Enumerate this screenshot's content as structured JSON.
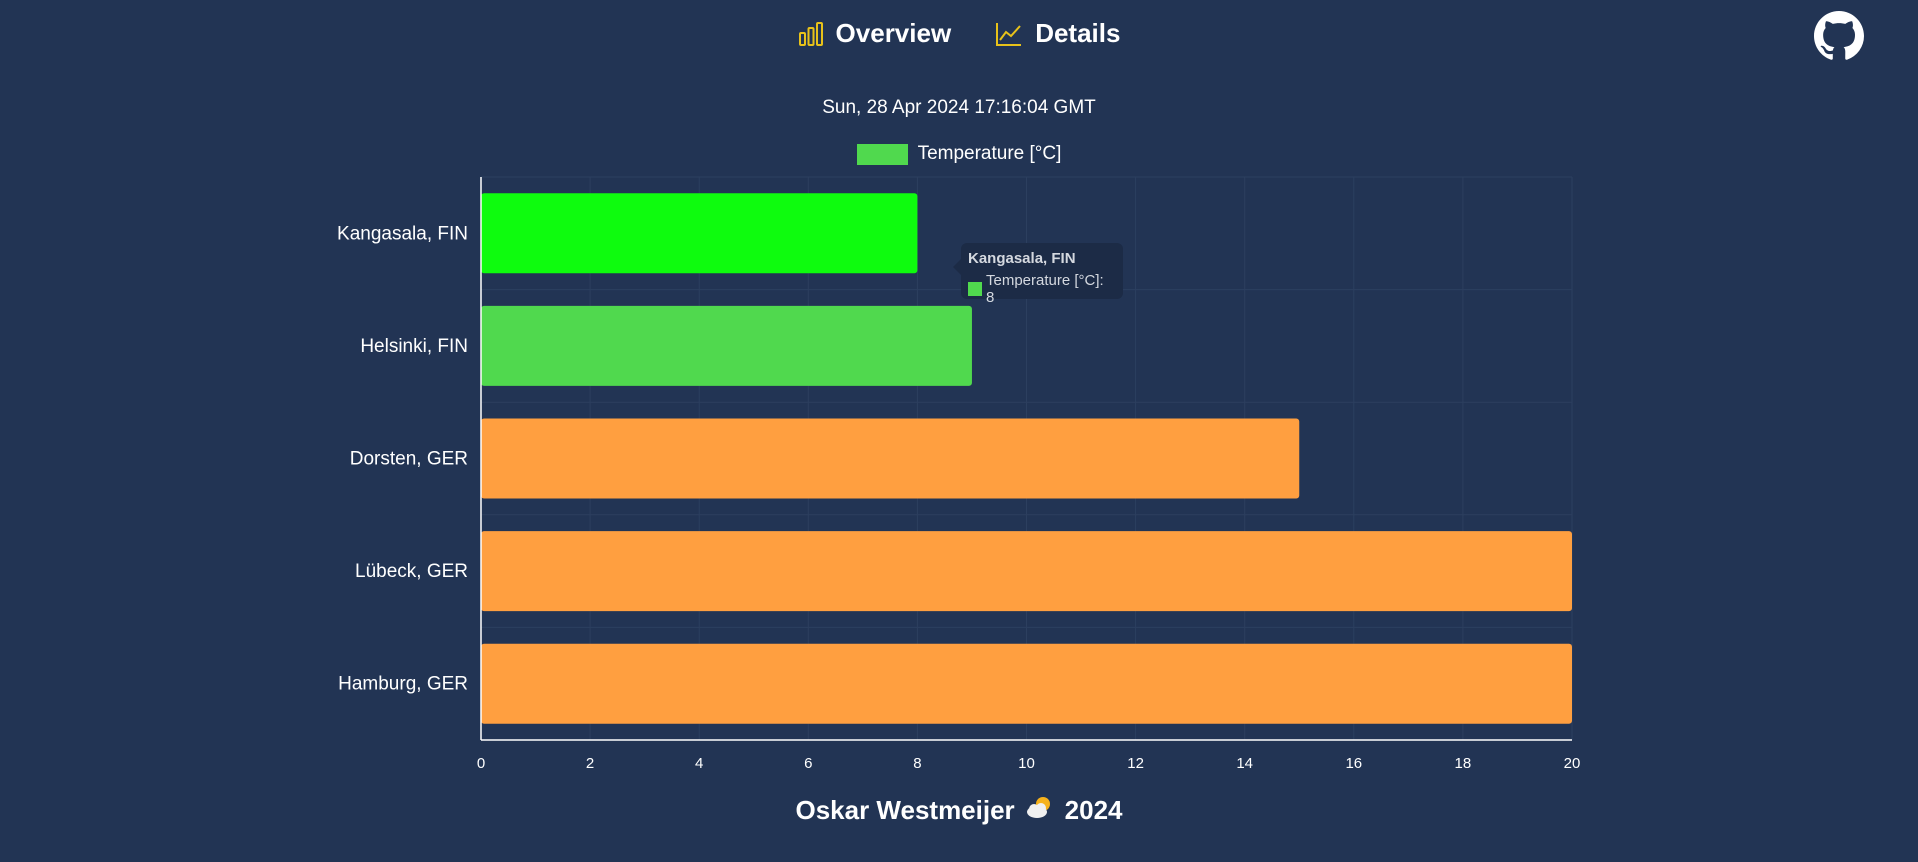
{
  "nav": {
    "overview_label": "Overview",
    "details_label": "Details",
    "icon_color": "#e8c21a"
  },
  "timestamp": "Sun, 28 Apr 2024 17:16:04 GMT",
  "footer": {
    "author": "Oskar Westmeijer",
    "icon": "sun-behind-cloud-icon",
    "year": "2024"
  },
  "tooltip": {
    "title": "Kangasala, FIN",
    "text": "Temperature [°C]: 8"
  },
  "chart_data": {
    "type": "bar",
    "orientation": "horizontal",
    "categories": [
      "Kangasala, FIN",
      "Helsinki, FIN",
      "Dorsten, GER",
      "Lübeck, GER",
      "Hamburg, GER"
    ],
    "series": [
      {
        "name": "Temperature [°C]",
        "values": [
          8,
          9,
          15,
          20,
          20
        ],
        "colors": [
          "#0efc0e",
          "#50d94e",
          "#ff9f40",
          "#ff9f40",
          "#ff9f40"
        ]
      }
    ],
    "legend_color": "#50d94e",
    "xlim": [
      0,
      20
    ],
    "x_ticks": [
      "0",
      "2",
      "4",
      "6",
      "8",
      "10",
      "12",
      "14",
      "16",
      "18",
      "20"
    ],
    "grid": true,
    "legend_position": "top"
  }
}
